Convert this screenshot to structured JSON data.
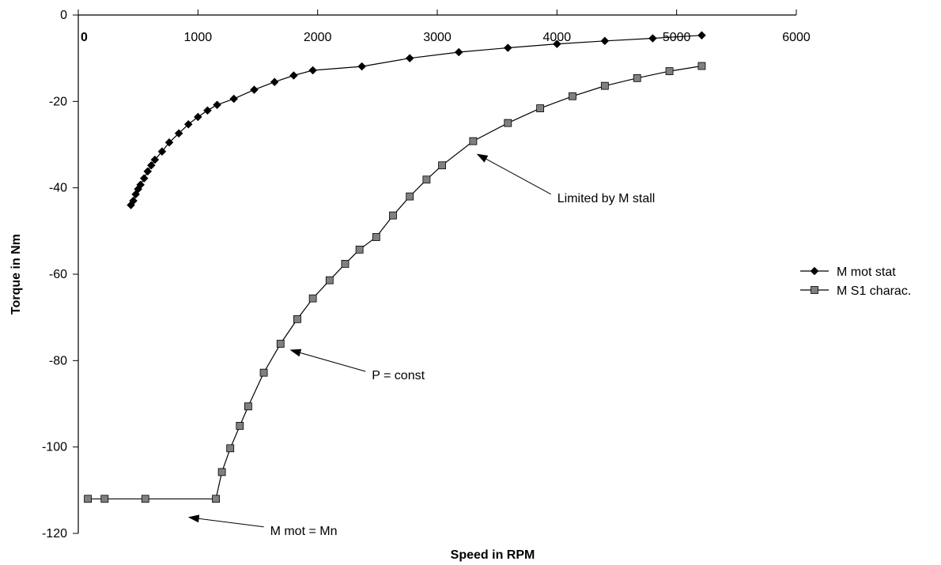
{
  "chart_data": {
    "type": "scatter",
    "title": "",
    "xlabel": "Speed in RPM",
    "ylabel": "Torque in Nm",
    "xlim": [
      0,
      6000
    ],
    "ylim": [
      -120,
      0
    ],
    "x_ticks": [
      "0",
      "1000",
      "2000",
      "3000",
      "4000",
      "5000",
      "6000"
    ],
    "y_ticks": [
      "0",
      "-20",
      "-40",
      "-60",
      "-80",
      "-100",
      "-120"
    ],
    "grid": false,
    "legend_position": "right",
    "series": [
      {
        "name": "M mot stat",
        "marker": "diamond",
        "color": "#000000",
        "x": [
          440,
          460,
          480,
          500,
          520,
          550,
          580,
          610,
          640,
          700,
          760,
          840,
          920,
          1000,
          1080,
          1160,
          1300,
          1470,
          1640,
          1800,
          1960,
          2370,
          2770,
          3180,
          3590,
          4000,
          4400,
          4800,
          5210
        ],
        "y": [
          -44,
          -43,
          -41.5,
          -40.3,
          -39.3,
          -37.8,
          -36.2,
          -34.8,
          -33.5,
          -31.6,
          -29.5,
          -27.4,
          -25.3,
          -23.6,
          -22.1,
          -20.8,
          -19.4,
          -17.3,
          -15.5,
          -14,
          -12.8,
          -11.9,
          -10,
          -8.6,
          -7.6,
          -6.7,
          -6,
          -5.4,
          -4.7
        ]
      },
      {
        "name": "M S1 charac.",
        "marker": "square",
        "color": "#808080",
        "x": [
          80,
          220,
          560,
          1150,
          1200,
          1270,
          1350,
          1420,
          1550,
          1690,
          1830,
          1960,
          2100,
          2230,
          2350,
          2490,
          2630,
          2770,
          2910,
          3040,
          3300,
          3590,
          3860,
          4130,
          4400,
          4670,
          4940,
          5210
        ],
        "y": [
          -112,
          -112,
          -112,
          -112,
          -105.8,
          -100.3,
          -95.1,
          -90.6,
          -82.8,
          -76.1,
          -70.4,
          -65.6,
          -61.4,
          -57.6,
          -54.3,
          -51.4,
          -46.4,
          -42,
          -38.1,
          -34.8,
          -29.2,
          -25,
          -21.6,
          -18.8,
          -16.4,
          -14.6,
          -13,
          -11.8
        ]
      }
    ],
    "annotations": [
      {
        "text": "Limited by M stall",
        "arrow_from": [
          3950,
          -41.5
        ],
        "arrow_to": [
          3340,
          -32.3
        ]
      },
      {
        "text": "P = const",
        "arrow_from": [
          2400,
          -82.5
        ],
        "arrow_to": [
          1780,
          -77.6
        ]
      },
      {
        "text": "M mot = Mn",
        "arrow_from": [
          1550,
          -118.5
        ],
        "arrow_to": [
          930,
          -116.3
        ]
      }
    ]
  }
}
